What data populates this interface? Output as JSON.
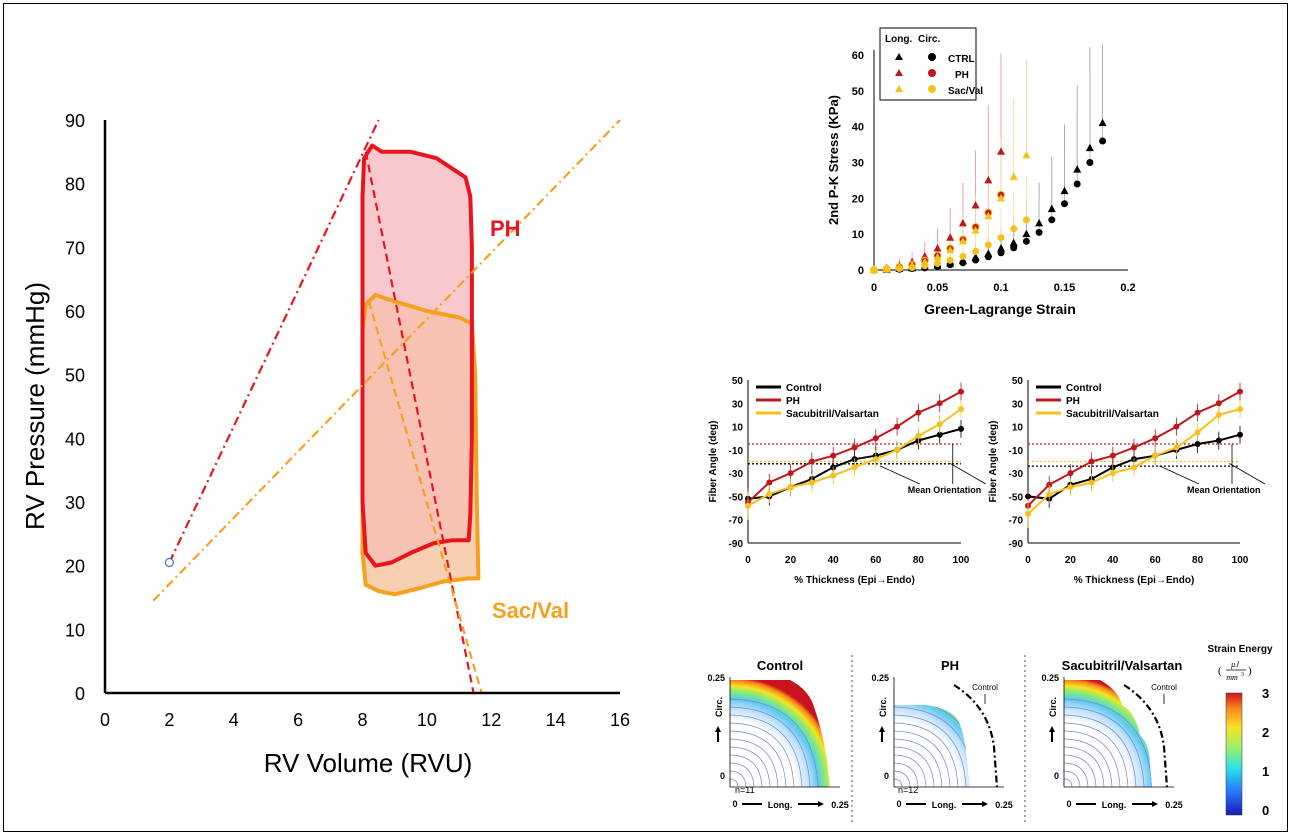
{
  "colors": {
    "ph": "#e8141e",
    "sac": "#f5a11e",
    "sac_alt": "#f7c01a",
    "ctrl": "#000000",
    "ph_dark": "#c0171e",
    "ph_fill": "#f9c8cc",
    "overlap_fill": "#f6bba1",
    "sac_fill": "#fce6c6",
    "point": "#4a76c8"
  },
  "pv": {
    "xlabel": "RV Volume (RVU)",
    "ylabel": "RV Pressure (mmHg)",
    "ph_label": "PH",
    "sac_label": "Sac/Val",
    "xticks": [
      "0",
      "2",
      "4",
      "6",
      "8",
      "10",
      "12",
      "14",
      "16"
    ],
    "yticks": [
      "0",
      "10",
      "20",
      "30",
      "40",
      "50",
      "60",
      "70",
      "80",
      "90"
    ]
  },
  "stress": {
    "xlabel": "Green-Lagrange Strain",
    "ylabel": "2nd P-K Stress (KPa)",
    "legend_long": "Long.",
    "legend_circ": "Circ.",
    "legend_ctrl": "CTRL",
    "legend_ph": "PH",
    "legend_sac": "Sac/Val",
    "xticks": [
      "0",
      "0.05",
      "0.1",
      "0.15",
      "0.2"
    ],
    "yticks": [
      "0",
      "10",
      "20",
      "30",
      "40",
      "50",
      "60"
    ]
  },
  "fiber": {
    "ylabel": "Fiber Angle (deg)",
    "xlabel": "% Thickness (Epi→Endo)",
    "legend_control": "Control",
    "legend_ph": "PH",
    "legend_sac": "Sacubitril/Valsartan",
    "annotation": "Mean Orientation",
    "xticks": [
      "0",
      "20",
      "40",
      "60",
      "80",
      "100"
    ],
    "yticks": [
      "50",
      "30",
      "10",
      "-10",
      "-30",
      "-50",
      "-70",
      "-90"
    ]
  },
  "energy": {
    "control_title": "Control",
    "ph_title": "PH",
    "sac_title": "Sacubitril/Valsartan",
    "n_control": "n=11",
    "n_ph": "n=12",
    "control_marker": "Control",
    "axis_circ": "Circ.",
    "axis_long": "Long.",
    "tick_0": "0",
    "tick_025": "0.25",
    "colorbar_title": "Strain Energy",
    "unit_num": "µJ",
    "unit_den": "mm",
    "unit_exp": "3",
    "cb_ticks": [
      "3",
      "2",
      "1",
      "0"
    ]
  },
  "chart_data": [
    {
      "type": "line",
      "title": "",
      "xlabel": "RV Volume (RVU)",
      "ylabel": "RV Pressure (mmHg)",
      "xlim": [
        0,
        16
      ],
      "ylim": [
        0,
        90
      ],
      "point": {
        "x": 2,
        "y": 20.5
      },
      "series": [
        {
          "name": "PH",
          "points": [
            [
              8,
              78
            ],
            [
              8.05,
              84
            ],
            [
              8.3,
              86
            ],
            [
              8.6,
              85
            ],
            [
              9.5,
              85
            ],
            [
              10.3,
              84
            ],
            [
              10.9,
              82
            ],
            [
              11.2,
              81
            ],
            [
              11.35,
              78
            ],
            [
              11.4,
              70
            ],
            [
              11.4,
              40
            ],
            [
              11.35,
              28
            ],
            [
              11.3,
              24
            ],
            [
              10.8,
              24
            ],
            [
              10.2,
              23.5
            ],
            [
              9.5,
              22
            ],
            [
              8.9,
              20.5
            ],
            [
              8.4,
              20
            ],
            [
              8.1,
              22
            ],
            [
              8,
              30
            ],
            [
              8,
              50
            ],
            [
              8,
              78
            ]
          ],
          "esp_line": [
            [
              2,
              20.5
            ],
            [
              8.5,
              90
            ]
          ],
          "ea_line": [
            [
              8.1,
              85
            ],
            [
              11.45,
              0
            ]
          ]
        },
        {
          "name": "Sac/Val",
          "points": [
            [
              8,
              57
            ],
            [
              8.1,
              61
            ],
            [
              8.4,
              62.5
            ],
            [
              9,
              61.5
            ],
            [
              10,
              60
            ],
            [
              11,
              59
            ],
            [
              11.4,
              58
            ],
            [
              11.5,
              50
            ],
            [
              11.55,
              30
            ],
            [
              11.6,
              18
            ],
            [
              11.3,
              18
            ],
            [
              10.5,
              17.5
            ],
            [
              9.8,
              16.5
            ],
            [
              9,
              15.5
            ],
            [
              8.5,
              16
            ],
            [
              8.1,
              17
            ],
            [
              8,
              22
            ],
            [
              8,
              40
            ],
            [
              8,
              57
            ]
          ],
          "esp_line": [
            [
              1.5,
              14.5
            ],
            [
              16,
              90
            ]
          ],
          "ea_line": [
            [
              8.2,
              61.5
            ],
            [
              11.7,
              0
            ]
          ]
        }
      ]
    },
    {
      "type": "scatter",
      "xlabel": "Green-Lagrange Strain",
      "ylabel": "2nd P-K Stress (KPa)",
      "xlim": [
        0,
        0.2
      ],
      "ylim": [
        0,
        60
      ],
      "series": [
        {
          "name": "CTRL Long.",
          "x": [
            0,
            0.01,
            0.02,
            0.03,
            0.04,
            0.05,
            0.06,
            0.07,
            0.08,
            0.09,
            0.1,
            0.11,
            0.12,
            0.13,
            0.14,
            0.15,
            0.16,
            0.17,
            0.18
          ],
          "y": [
            0,
            0.1,
            0.3,
            0.5,
            0.8,
            1.2,
            1.8,
            2.5,
            3.5,
            4.5,
            6,
            7.5,
            10,
            13,
            17,
            22,
            28,
            34,
            41
          ]
        },
        {
          "name": "CTRL Circ.",
          "x": [
            0,
            0.01,
            0.02,
            0.03,
            0.04,
            0.05,
            0.06,
            0.07,
            0.08,
            0.09,
            0.1,
            0.11,
            0.12,
            0.13,
            0.14,
            0.15,
            0.16,
            0.17,
            0.18
          ],
          "y": [
            0,
            0.1,
            0.2,
            0.4,
            0.6,
            1,
            1.5,
            2,
            2.8,
            3.7,
            4.8,
            6.2,
            8,
            10.5,
            14,
            18.5,
            24,
            30,
            36
          ]
        },
        {
          "name": "PH Long.",
          "x": [
            0,
            0.01,
            0.02,
            0.03,
            0.04,
            0.05,
            0.06,
            0.07,
            0.08,
            0.09,
            0.1
          ],
          "y": [
            0,
            0.5,
            1.2,
            2.2,
            3.8,
            6,
            9,
            13,
            18,
            25,
            33
          ]
        },
        {
          "name": "PH Circ.",
          "x": [
            0,
            0.01,
            0.02,
            0.03,
            0.04,
            0.05,
            0.06,
            0.07,
            0.08,
            0.09,
            0.1
          ],
          "y": [
            0,
            0.3,
            0.8,
            1.5,
            2.6,
            4,
            6,
            8.5,
            12,
            16,
            21
          ]
        },
        {
          "name": "Sac/Val Long.",
          "x": [
            0,
            0.01,
            0.02,
            0.03,
            0.04,
            0.05,
            0.06,
            0.07,
            0.08,
            0.09,
            0.1,
            0.11,
            0.12
          ],
          "y": [
            0,
            0.3,
            0.7,
            1.3,
            2.2,
            3.5,
            5.5,
            8,
            11,
            15,
            20,
            26,
            32
          ]
        },
        {
          "name": "Sac/Val Circ.",
          "x": [
            0,
            0.01,
            0.02,
            0.03,
            0.04,
            0.05,
            0.06,
            0.07,
            0.08,
            0.09,
            0.1,
            0.11,
            0.12
          ],
          "y": [
            0,
            0.2,
            0.4,
            0.7,
            1.2,
            1.8,
            2.7,
            3.8,
            5.2,
            7,
            9,
            11.5,
            14
          ]
        }
      ]
    },
    {
      "type": "line",
      "xlabel": "% Thickness (Epi→Endo)",
      "ylabel": "Fiber Angle (deg)",
      "xlim": [
        0,
        100
      ],
      "ylim": [
        -90,
        50
      ],
      "x": [
        0,
        10,
        20,
        30,
        40,
        50,
        60,
        70,
        80,
        90,
        100
      ],
      "series": [
        {
          "name": "Control",
          "values": [
            -52,
            -50,
            -42,
            -35,
            -25,
            -18,
            -15,
            -10,
            -2,
            3,
            8
          ],
          "mean": -22
        },
        {
          "name": "PH",
          "values": [
            -55,
            -38,
            -30,
            -20,
            -15,
            -8,
            0,
            10,
            22,
            30,
            40
          ],
          "mean": -5
        },
        {
          "name": "Sacubitril/Valsartan",
          "values": [
            -58,
            -48,
            -42,
            -38,
            -32,
            -25,
            -18,
            -10,
            2,
            12,
            25
          ],
          "mean": -20
        }
      ]
    },
    {
      "type": "line",
      "xlabel": "% Thickness (Epi→Endo)",
      "ylabel": "Fiber Angle (deg)",
      "xlim": [
        0,
        100
      ],
      "ylim": [
        -90,
        50
      ],
      "x": [
        0,
        10,
        20,
        30,
        40,
        50,
        60,
        70,
        80,
        90,
        100
      ],
      "series": [
        {
          "name": "Control",
          "values": [
            -50,
            -52,
            -40,
            -35,
            -25,
            -18,
            -15,
            -10,
            -5,
            -2,
            3
          ],
          "mean": -24
        },
        {
          "name": "PH",
          "values": [
            -58,
            -40,
            -30,
            -20,
            -15,
            -8,
            0,
            10,
            22,
            30,
            40
          ],
          "mean": -5
        },
        {
          "name": "Sacubitril/Valsartan",
          "values": [
            -65,
            -48,
            -42,
            -38,
            -30,
            -25,
            -15,
            -8,
            5,
            20,
            25
          ],
          "mean": -20
        }
      ]
    },
    {
      "type": "heatmap",
      "title": "Strain Energy",
      "panels": [
        "Control",
        "PH",
        "Sacubitril/Valsartan"
      ],
      "xlim": [
        0,
        0.25
      ],
      "ylim": [
        0,
        0.25
      ],
      "colorbar": [
        0,
        3
      ]
    }
  ]
}
